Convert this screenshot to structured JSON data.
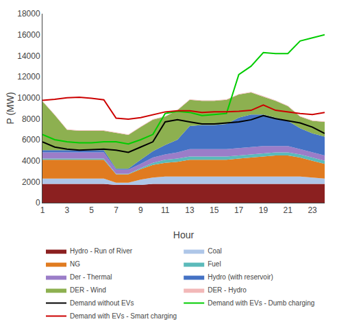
{
  "chart_data": {
    "type": "area",
    "stacked": true,
    "x": [
      1,
      2,
      3,
      4,
      5,
      6,
      7,
      8,
      9,
      10,
      11,
      12,
      13,
      14,
      15,
      16,
      17,
      18,
      19,
      20,
      21,
      22,
      23,
      24
    ],
    "series": [
      {
        "name": "Hydro - Run of River",
        "color": "#8b2020",
        "values": [
          1800,
          1800,
          1800,
          1800,
          1800,
          1800,
          1700,
          1700,
          1700,
          1800,
          1800,
          1800,
          1800,
          1800,
          1800,
          1800,
          1800,
          1800,
          1800,
          1800,
          1800,
          1800,
          1800,
          1800
        ]
      },
      {
        "name": "Coal",
        "color": "#aec6e8",
        "values": [
          500,
          500,
          500,
          500,
          500,
          500,
          200,
          200,
          500,
          600,
          700,
          700,
          700,
          700,
          700,
          700,
          700,
          700,
          700,
          700,
          700,
          700,
          600,
          500
        ]
      },
      {
        "name": "NG",
        "color": "#e07b20",
        "values": [
          1800,
          1800,
          1800,
          1800,
          1800,
          1800,
          800,
          800,
          1000,
          1200,
          1300,
          1400,
          1600,
          1600,
          1600,
          1600,
          1700,
          1800,
          1900,
          2000,
          2000,
          1800,
          1600,
          1400
        ]
      },
      {
        "name": "Fuel",
        "color": "#5bbaba",
        "values": [
          100,
          100,
          100,
          100,
          100,
          100,
          50,
          50,
          100,
          200,
          300,
          300,
          300,
          300,
          300,
          300,
          300,
          300,
          300,
          300,
          300,
          300,
          300,
          300
        ]
      },
      {
        "name": "Der - Thermal",
        "color": "#9b7dc8",
        "values": [
          600,
          600,
          600,
          600,
          600,
          600,
          400,
          400,
          400,
          500,
          500,
          600,
          700,
          700,
          700,
          700,
          700,
          700,
          700,
          600,
          600,
          500,
          500,
          500
        ]
      },
      {
        "name": "Hydro (with reservoir)",
        "color": "#4472c4",
        "values": [
          200,
          200,
          200,
          200,
          200,
          200,
          100,
          100,
          400,
          600,
          900,
          1200,
          2200,
          2300,
          2300,
          2400,
          2900,
          3100,
          3000,
          2700,
          2400,
          2000,
          1800,
          1800
        ]
      },
      {
        "name": "DER - Wind",
        "color": "#8db050",
        "values": [
          4650,
          3350,
          1950,
          1850,
          1850,
          1850,
          3400,
          3200,
          3100,
          3000,
          2700,
          2800,
          2500,
          2300,
          2300,
          2300,
          2200,
          2100,
          1700,
          1600,
          1400,
          1100,
          1200,
          1400
        ]
      },
      {
        "name": "DER - Hydro",
        "color": "#f2b8b8",
        "values": [
          50,
          50,
          50,
          50,
          50,
          50,
          50,
          50,
          50,
          50,
          50,
          50,
          50,
          50,
          50,
          50,
          50,
          50,
          50,
          50,
          50,
          50,
          50,
          50
        ]
      },
      {
        "name": "Demand without EVs",
        "type": "line",
        "color": "#000000",
        "values": [
          5800,
          5300,
          5100,
          5000,
          5050,
          5100,
          5000,
          4800,
          5300,
          5800,
          7700,
          7900,
          7700,
          7500,
          7500,
          7600,
          7700,
          7900,
          8300,
          8000,
          7800,
          7600,
          7200,
          6600
        ]
      },
      {
        "name": "Demand with EVs - Dumb charging",
        "type": "line",
        "color": "#00cc00",
        "values": [
          6500,
          6000,
          5800,
          5700,
          5700,
          5800,
          5800,
          5600,
          6000,
          6500,
          8500,
          8700,
          8600,
          8300,
          8400,
          8500,
          12200,
          13000,
          14300,
          14200,
          14200,
          15400,
          15700,
          16000
        ]
      },
      {
        "name": "Demand with EVs - Smart charging",
        "type": "line",
        "color": "#cc0000",
        "values": [
          9750,
          9850,
          10000,
          10050,
          9950,
          9800,
          8050,
          7950,
          8100,
          8400,
          8650,
          8750,
          8750,
          8600,
          8650,
          8650,
          8700,
          8800,
          9300,
          8800,
          8650,
          8500,
          8400,
          8600
        ]
      }
    ],
    "xlim": [
      1,
      24
    ],
    "xticks": [
      1,
      3,
      5,
      7,
      9,
      11,
      13,
      15,
      17,
      19,
      21,
      23
    ],
    "ylim": [
      0,
      18000
    ],
    "yticks": [
      0,
      2000,
      4000,
      6000,
      8000,
      10000,
      12000,
      14000,
      16000,
      18000
    ],
    "xlabel": "Hour",
    "ylabel": "P (MW)",
    "grid": false,
    "legend": "bottom"
  }
}
